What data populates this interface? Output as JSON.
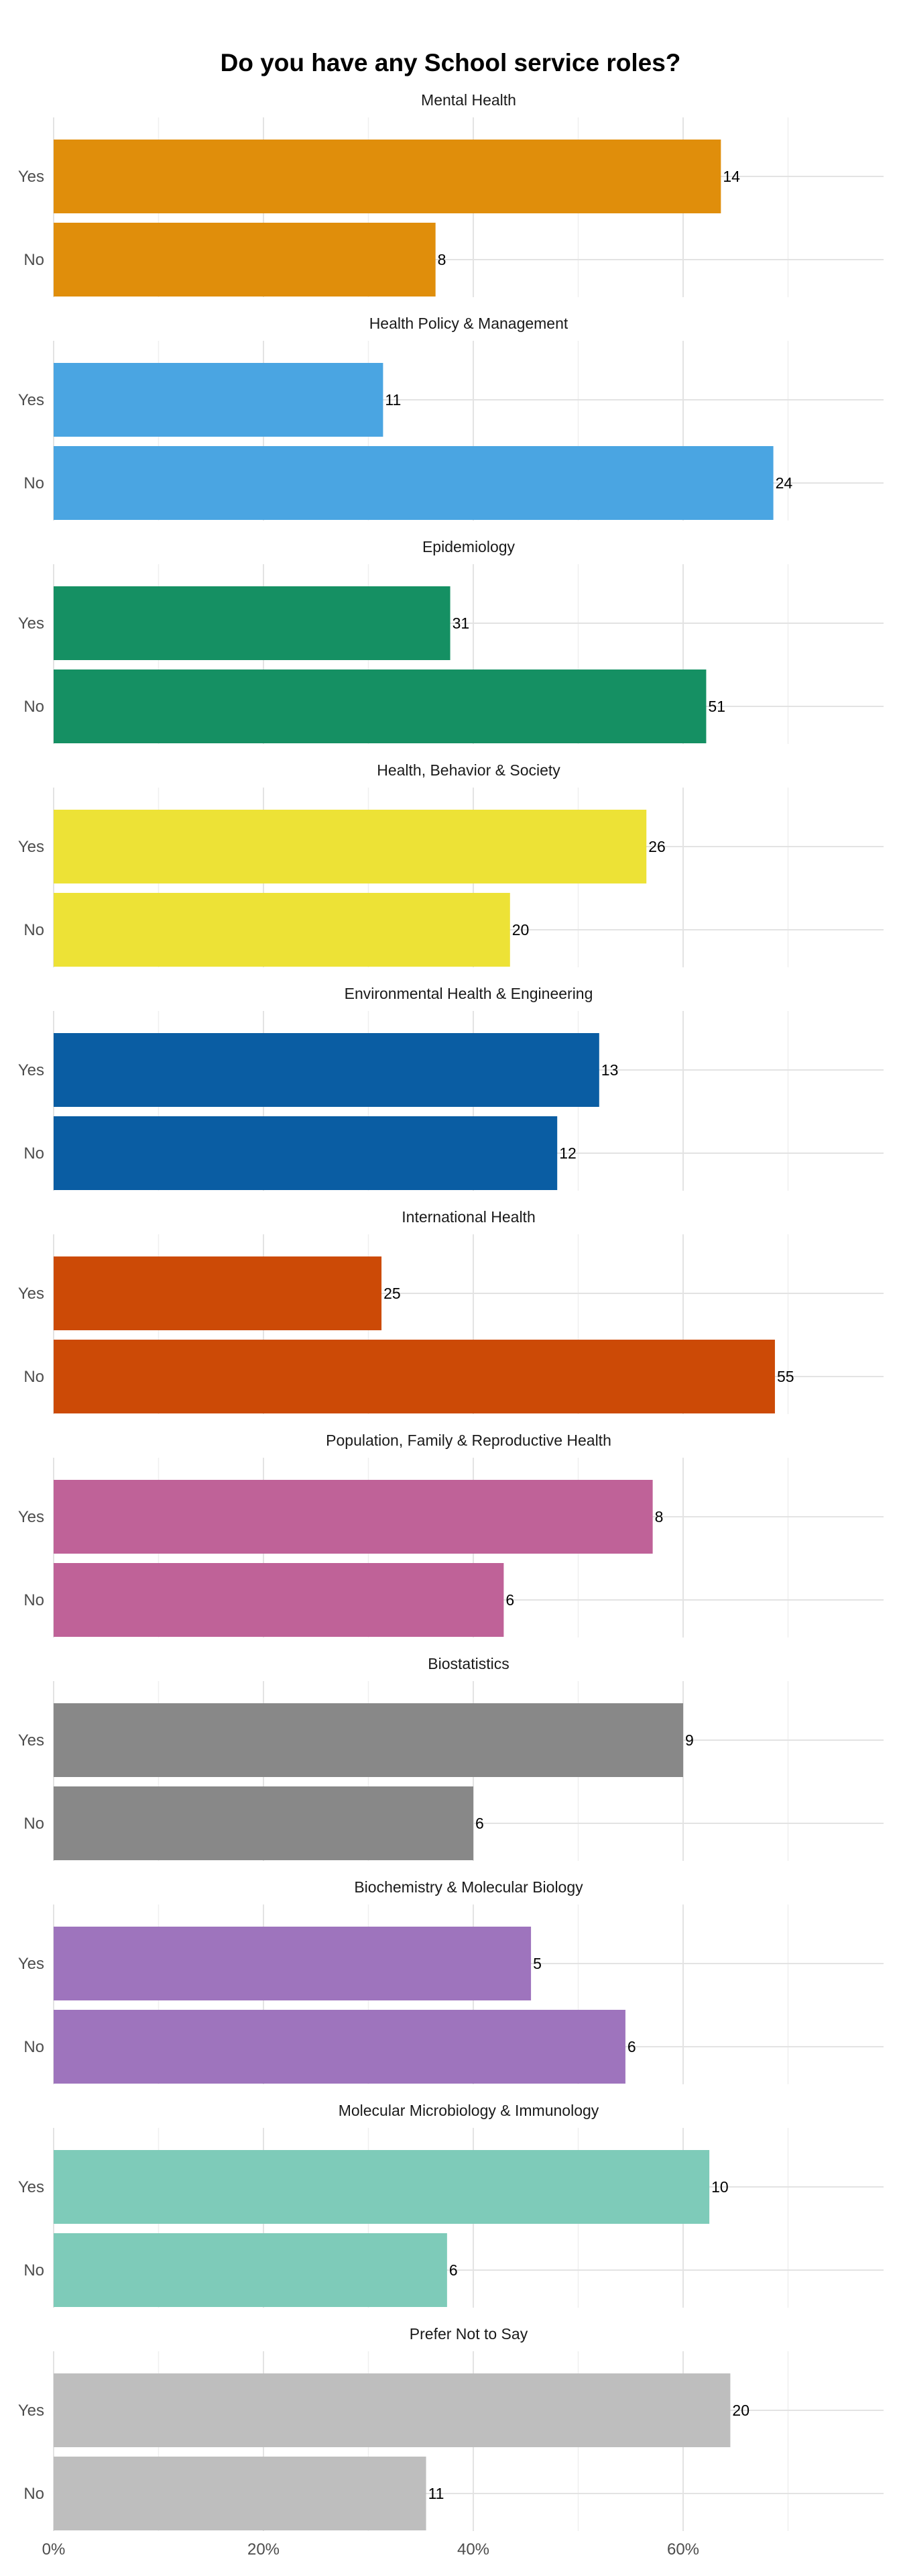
{
  "chart_data": {
    "type": "bar",
    "orientation": "horizontal",
    "title": "Do you have any School service roles?",
    "xlabel": "",
    "ylabel": "",
    "xlim": [
      0,
      0.79
    ],
    "x_ticks": [
      {
        "value": 0,
        "label": "0%"
      },
      {
        "value": 0.2,
        "label": "20%"
      },
      {
        "value": 0.4,
        "label": "40%"
      },
      {
        "value": 0.6,
        "label": "60%"
      }
    ],
    "grid": true,
    "legend": "none",
    "categories": [
      "Yes",
      "No"
    ],
    "facets": [
      {
        "name": "Mental Health",
        "color": "#E08E0B",
        "values": [
          0.636,
          0.364
        ],
        "labels": [
          "14",
          "8"
        ]
      },
      {
        "name": "Health Policy & Management",
        "color": "#4AA5E2",
        "values": [
          0.314,
          0.686
        ],
        "labels": [
          "11",
          "24"
        ]
      },
      {
        "name": "Epidemiology",
        "color": "#159063",
        "values": [
          0.378,
          0.622
        ],
        "labels": [
          "31",
          "51"
        ]
      },
      {
        "name": "Health, Behavior & Society",
        "color": "#EDE236",
        "values": [
          0.565,
          0.435
        ],
        "labels": [
          "26",
          "20"
        ]
      },
      {
        "name": "Environmental Health & Engineering",
        "color": "#0A5DA3",
        "values": [
          0.52,
          0.48
        ],
        "labels": [
          "13",
          "12"
        ]
      },
      {
        "name": "International Health",
        "color": "#CC4A06",
        "values": [
          0.3125,
          0.6875
        ],
        "labels": [
          "25",
          "55"
        ]
      },
      {
        "name": "Population, Family & Reproductive Health",
        "color": "#BF6298",
        "values": [
          0.571,
          0.429
        ],
        "labels": [
          "8",
          "6"
        ]
      },
      {
        "name": "Biostatistics",
        "color": "#888888",
        "values": [
          0.6,
          0.4
        ],
        "labels": [
          "9",
          "6"
        ]
      },
      {
        "name": "Biochemistry & Molecular Biology",
        "color": "#9E74BD",
        "values": [
          0.455,
          0.545
        ],
        "labels": [
          "5",
          "6"
        ]
      },
      {
        "name": "Molecular Microbiology & Immunology",
        "color": "#7ECBB9",
        "values": [
          0.625,
          0.375
        ],
        "labels": [
          "10",
          "6"
        ]
      },
      {
        "name": "Prefer Not to Say",
        "color": "#BEBEBE",
        "values": [
          0.645,
          0.355
        ],
        "labels": [
          "20",
          "11"
        ]
      }
    ]
  }
}
